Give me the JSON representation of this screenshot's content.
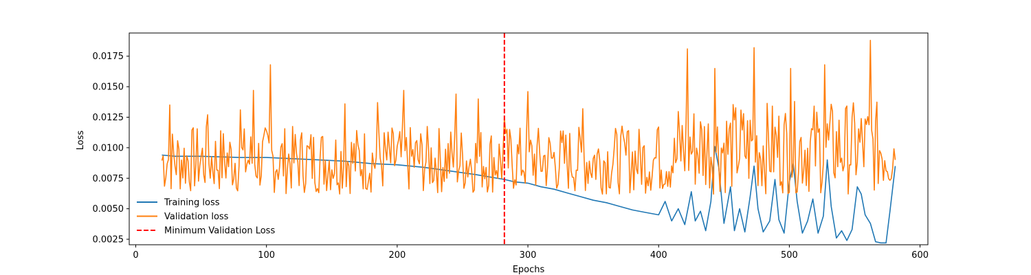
{
  "chart_data": {
    "type": "line",
    "title": "",
    "xlabel": "Epochs",
    "ylabel": "Loss",
    "xlim": [
      -5,
      606
    ],
    "ylim": [
      0.00205,
      0.0194
    ],
    "x_ticks": [
      0,
      100,
      200,
      300,
      400,
      500,
      600
    ],
    "y_ticks": [
      0.0025,
      0.005,
      0.0075,
      0.01,
      0.0125,
      0.015,
      0.0175
    ],
    "y_tick_labels": [
      "0.0025",
      "0.0050",
      "0.0075",
      "0.0100",
      "0.0125",
      "0.0150",
      "0.0175"
    ],
    "grid": false,
    "legend_position": "lower-left",
    "series": [
      {
        "name": "Training loss",
        "color": "#1f77b4",
        "style": "solid",
        "points": [
          [
            20,
            0.0094
          ],
          [
            30,
            0.0093
          ],
          [
            50,
            0.0093
          ],
          [
            80,
            0.0092
          ],
          [
            100,
            0.0092
          ],
          [
            120,
            0.0091
          ],
          [
            140,
            0.009
          ],
          [
            160,
            0.0089
          ],
          [
            180,
            0.0087
          ],
          [
            200,
            0.0086
          ],
          [
            220,
            0.0084
          ],
          [
            240,
            0.0081
          ],
          [
            260,
            0.0078
          ],
          [
            282,
            0.0074
          ],
          [
            290,
            0.0072
          ],
          [
            300,
            0.0071
          ],
          [
            310,
            0.0068
          ],
          [
            320,
            0.0066
          ],
          [
            330,
            0.0063
          ],
          [
            340,
            0.006
          ],
          [
            350,
            0.0057
          ],
          [
            360,
            0.0055
          ],
          [
            370,
            0.0052
          ],
          [
            380,
            0.0049
          ],
          [
            390,
            0.0047
          ],
          [
            400,
            0.0045
          ],
          [
            405,
            0.0056
          ],
          [
            410,
            0.004
          ],
          [
            415,
            0.005
          ],
          [
            420,
            0.0037
          ],
          [
            425,
            0.0064
          ],
          [
            428,
            0.004
          ],
          [
            432,
            0.0048
          ],
          [
            436,
            0.0032
          ],
          [
            440,
            0.0056
          ],
          [
            443,
            0.0101
          ],
          [
            446,
            0.0084
          ],
          [
            450,
            0.0038
          ],
          [
            455,
            0.0068
          ],
          [
            458,
            0.0032
          ],
          [
            462,
            0.005
          ],
          [
            466,
            0.0031
          ],
          [
            470,
            0.006
          ],
          [
            473,
            0.0085
          ],
          [
            476,
            0.005
          ],
          [
            480,
            0.0031
          ],
          [
            485,
            0.004
          ],
          [
            489,
            0.0074
          ],
          [
            492,
            0.0041
          ],
          [
            496,
            0.003
          ],
          [
            500,
            0.0072
          ],
          [
            503,
            0.0087
          ],
          [
            506,
            0.0056
          ],
          [
            510,
            0.003
          ],
          [
            514,
            0.004
          ],
          [
            518,
            0.0058
          ],
          [
            522,
            0.003
          ],
          [
            526,
            0.0044
          ],
          [
            529,
            0.009
          ],
          [
            532,
            0.0052
          ],
          [
            536,
            0.0026
          ],
          [
            540,
            0.0032
          ],
          [
            544,
            0.0024
          ],
          [
            548,
            0.0033
          ],
          [
            552,
            0.0068
          ],
          [
            555,
            0.0062
          ],
          [
            558,
            0.0045
          ],
          [
            562,
            0.0038
          ],
          [
            566,
            0.0023
          ],
          [
            570,
            0.0022
          ],
          [
            574,
            0.0022
          ],
          [
            577,
            0.0048
          ],
          [
            581,
            0.0085
          ]
        ]
      },
      {
        "name": "Validation loss",
        "color": "#ff7f0e",
        "style": "solid",
        "x_start": 20,
        "x_end": 581,
        "y_min": 0.0059,
        "y_max": 0.0188,
        "peaks": [
          [
            26,
            0.0135
          ],
          [
            55,
            0.0127
          ],
          [
            80,
            0.0131
          ],
          [
            90,
            0.0147
          ],
          [
            103,
            0.0168
          ],
          [
            160,
            0.0136
          ],
          [
            185,
            0.0137
          ],
          [
            205,
            0.0147
          ],
          [
            245,
            0.0144
          ],
          [
            262,
            0.014
          ],
          [
            282,
            0.0125
          ],
          [
            300,
            0.0146
          ],
          [
            342,
            0.0132
          ],
          [
            377,
            0.0114
          ],
          [
            400,
            0.0117
          ],
          [
            422,
            0.0181
          ],
          [
            443,
            0.0165
          ],
          [
            473,
            0.0182
          ],
          [
            501,
            0.0165
          ],
          [
            527,
            0.0168
          ],
          [
            562,
            0.0188
          ],
          [
            581,
            0.009
          ]
        ]
      },
      {
        "name": "Minimum Validation Loss",
        "color": "#ff0000",
        "style": "dashed",
        "type": "vline",
        "x": 282
      }
    ]
  }
}
